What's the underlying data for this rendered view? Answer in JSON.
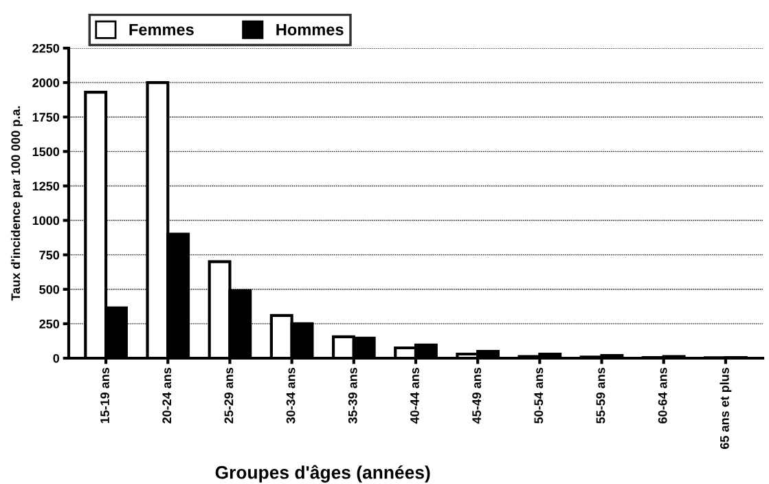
{
  "chart_data": {
    "type": "bar",
    "xlabel": "Groupes d'âges (années)",
    "ylabel": "Taux d'incidence par 100 000 p.a.",
    "categories": [
      "15-19 ans",
      "20-24 ans",
      "25-29 ans",
      "30-34 ans",
      "35-39 ans",
      "40-44 ans",
      "45-49 ans",
      "50-54 ans",
      "55-59 ans",
      "60-64 ans",
      "65 ans et plus"
    ],
    "series": [
      {
        "name": "Femmes",
        "color": "#ffffff",
        "values": [
          1930,
          2000,
          700,
          310,
          155,
          75,
          30,
          12,
          8,
          5,
          3
        ]
      },
      {
        "name": "Hommes",
        "color": "#000000",
        "values": [
          365,
          900,
          490,
          250,
          145,
          95,
          50,
          30,
          20,
          12,
          5
        ]
      }
    ],
    "ylim": [
      0,
      2250
    ],
    "yticks": [
      0,
      250,
      500,
      750,
      1000,
      1250,
      1500,
      1750,
      2000,
      2250
    ],
    "grid": "y",
    "legend": "top left"
  }
}
